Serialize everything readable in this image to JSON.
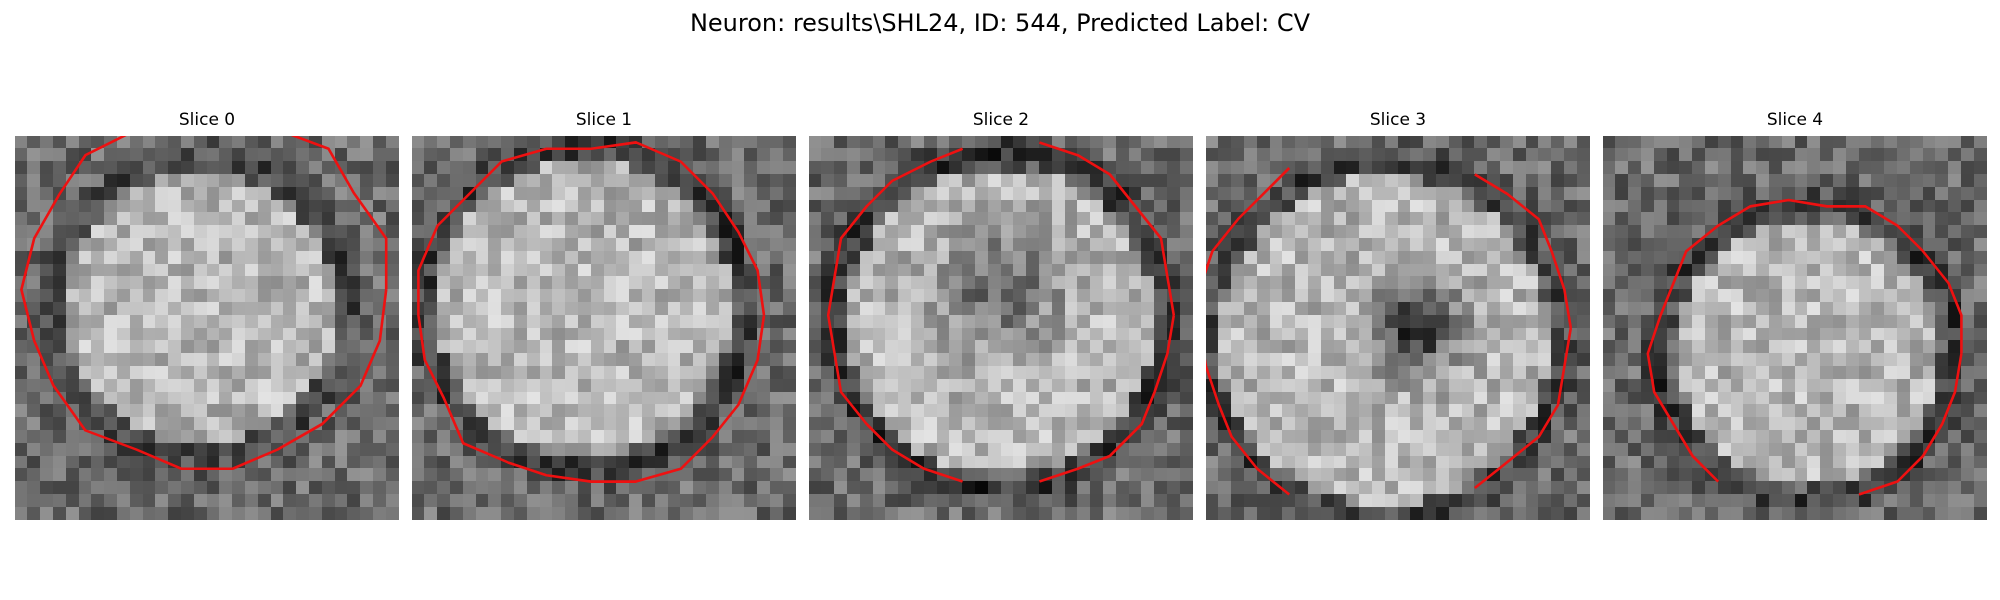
{
  "figure": {
    "title": "Neuron: results\\SHL24, ID: 544, Predicted Label: CV"
  },
  "panels": [
    {
      "title": "Slice 0",
      "contour_shape": "full circle",
      "dark_center": false
    },
    {
      "title": "Slice 1",
      "contour_shape": "circle touching left and bottom edges",
      "dark_center": false
    },
    {
      "title": "Slice 2",
      "contour_shape": "open at top and bottom",
      "dark_center": true
    },
    {
      "title": "Slice 3",
      "contour_shape": "open at top and bottom",
      "dark_center": true
    },
    {
      "title": "Slice 4",
      "contour_shape": "circle open at bottom",
      "dark_center": false
    }
  ],
  "colors": {
    "contour": "#ee1111",
    "image_colormap": "gray"
  }
}
